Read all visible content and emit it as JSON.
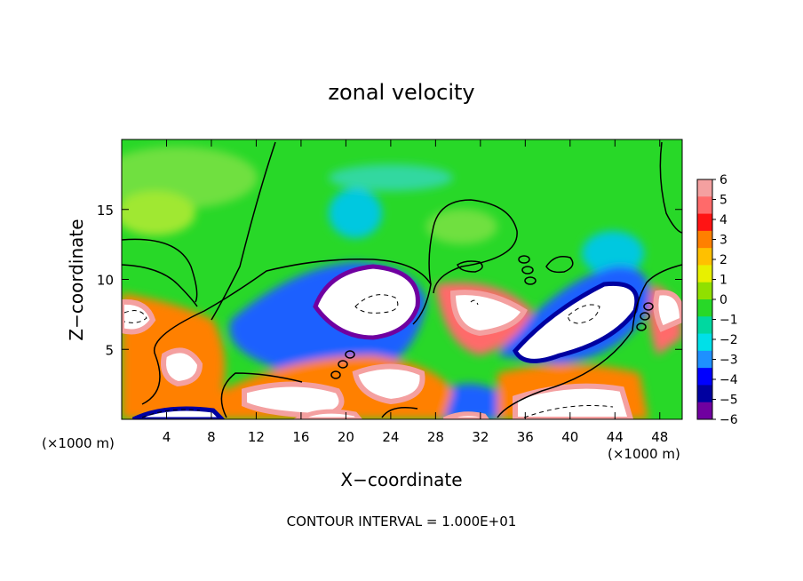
{
  "chart_data": {
    "type": "heatmap",
    "title": "zonal velocity",
    "xlabel": "X−coordinate",
    "ylabel": "Z−coordinate",
    "x_unit_left": "(×1000 m)",
    "x_unit_right": "(×1000 m)",
    "footer": "CONTOUR INTERVAL = 1.000E+01",
    "xlim": [
      0,
      50
    ],
    "ylim": [
      0,
      20
    ],
    "x_ticks": [
      4,
      8,
      12,
      16,
      20,
      24,
      28,
      32,
      36,
      40,
      44,
      48
    ],
    "y_ticks": [
      5,
      10,
      15
    ],
    "colorbar": {
      "levels": [
        6,
        5,
        4,
        3,
        2,
        1,
        0,
        -1,
        -2,
        -3,
        -4,
        -5,
        -6
      ],
      "colors": [
        "#f4a0a0",
        "#ff6a6a",
        "#ff1414",
        "#ff8000",
        "#ffc000",
        "#e8f000",
        "#90e000",
        "#28d828",
        "#00d8a0",
        "#00e0e8",
        "#1e90ff",
        "#0000ff",
        "#0000a0",
        "#7000a0"
      ]
    }
  }
}
